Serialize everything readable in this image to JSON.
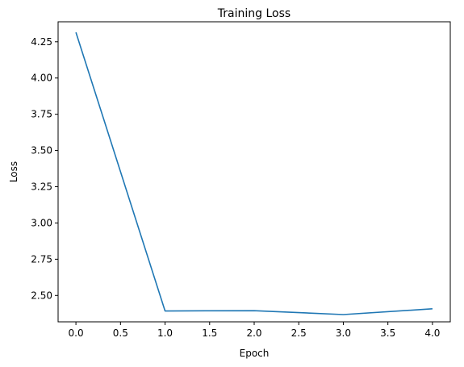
{
  "chart_data": {
    "type": "line",
    "title": "Training Loss",
    "xlabel": "Epoch",
    "ylabel": "Loss",
    "xlim": [
      -0.2,
      4.2
    ],
    "ylim": [
      2.318,
      4.388
    ],
    "xticks": [
      0.0,
      0.5,
      1.0,
      1.5,
      2.0,
      2.5,
      3.0,
      3.5,
      4.0
    ],
    "xtick_labels": [
      "0.0",
      "0.5",
      "1.0",
      "1.5",
      "2.0",
      "2.5",
      "3.0",
      "3.5",
      "4.0"
    ],
    "yticks": [
      2.5,
      2.75,
      3.0,
      3.25,
      3.5,
      3.75,
      4.0,
      4.25
    ],
    "ytick_labels": [
      "2.50",
      "2.75",
      "3.00",
      "3.25",
      "3.50",
      "3.75",
      "4.00",
      "4.25"
    ],
    "grid": false,
    "legend": "none",
    "series": [
      {
        "color": "#1f77b4",
        "x": [
          0,
          1,
          2,
          3,
          4
        ],
        "y": [
          4.315,
          2.393,
          2.395,
          2.368,
          2.408
        ]
      }
    ]
  }
}
